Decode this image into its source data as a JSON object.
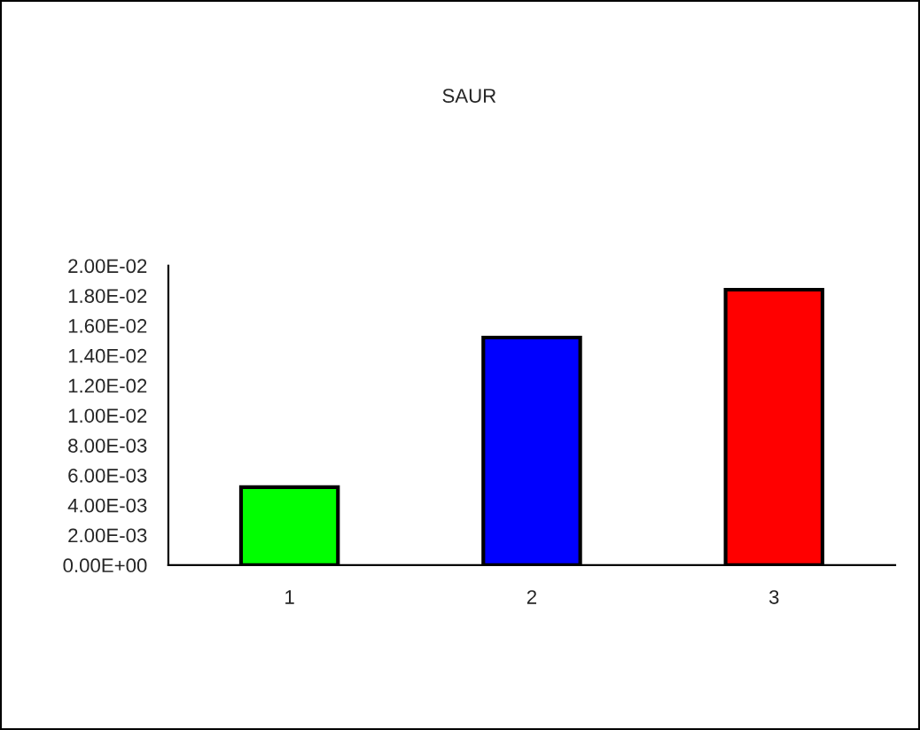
{
  "chart_data": {
    "type": "bar",
    "title": "SAUR",
    "categories": [
      "1",
      "2",
      "3"
    ],
    "values": [
      0.0052,
      0.0152,
      0.0184
    ],
    "colors": [
      "#00ff00",
      "#0000ff",
      "#ff0000"
    ],
    "ylim": [
      0,
      0.02
    ],
    "yticks": [
      {
        "value": 0,
        "label": "0.00E+00"
      },
      {
        "value": 0.002,
        "label": "2.00E-03"
      },
      {
        "value": 0.004,
        "label": "4.00E-03"
      },
      {
        "value": 0.006,
        "label": "6.00E-03"
      },
      {
        "value": 0.008,
        "label": "8.00E-03"
      },
      {
        "value": 0.01,
        "label": "1.00E-02"
      },
      {
        "value": 0.012,
        "label": "1.20E-02"
      },
      {
        "value": 0.014,
        "label": "1.40E-02"
      },
      {
        "value": 0.016,
        "label": "1.60E-02"
      },
      {
        "value": 0.018,
        "label": "1.80E-02"
      },
      {
        "value": 0.02,
        "label": "2.00E-02"
      }
    ],
    "grid": false,
    "legend": false
  }
}
